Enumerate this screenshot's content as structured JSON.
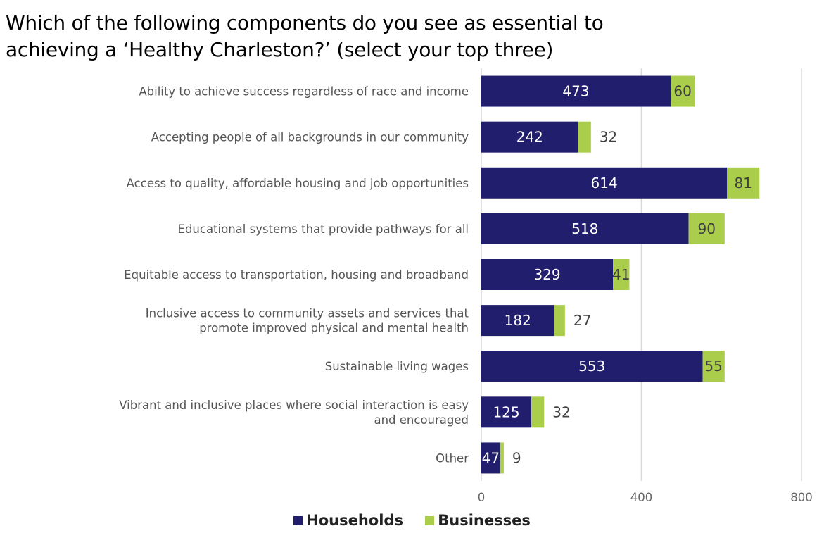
{
  "chart_data": {
    "type": "bar",
    "orientation": "horizontal",
    "stacked": true,
    "title": "Which of the following components do you see as essential to achieving a ‘Healthy Charleston?’ (select your top three)",
    "title_lines": [
      "Which of the following components do you see as essential to",
      "achieving a ‘Healthy Charleston?’ (select your top three)"
    ],
    "categories": [
      [
        "Ability to achieve success regardless of race and income"
      ],
      [
        "Accepting people of all backgrounds in our community"
      ],
      [
        "Access to quality, affordable housing and job opportunities"
      ],
      [
        "Educational systems that provide pathways for all"
      ],
      [
        "Equitable access to transportation, housing and broadband"
      ],
      [
        "Inclusive access to community assets and services that",
        "promote improved physical and mental health"
      ],
      [
        "Sustainable living wages"
      ],
      [
        "Vibrant and inclusive places where social interaction is easy",
        "and encouraged"
      ],
      [
        "Other"
      ]
    ],
    "series": [
      {
        "name": "Households",
        "color": "#221E6E",
        "values": [
          473,
          242,
          614,
          518,
          329,
          182,
          553,
          125,
          47
        ]
      },
      {
        "name": "Businesses",
        "color": "#AACD4C",
        "values": [
          60,
          32,
          81,
          90,
          41,
          27,
          55,
          32,
          9
        ]
      }
    ],
    "xlim": [
      0,
      800
    ],
    "xticks": [
      "0",
      "400",
      "800"
    ],
    "grid": true,
    "legend": "bottom"
  }
}
